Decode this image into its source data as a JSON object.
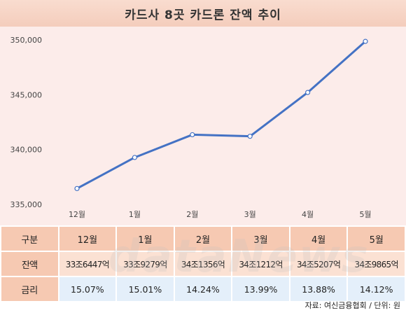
{
  "title": "카드사 8곳 카드론 잔액 추이",
  "chart_data": {
    "type": "line",
    "title": "카드사 8곳 카드론 잔액 추이",
    "categories": [
      "12월",
      "1월",
      "2월",
      "3월",
      "4월",
      "5월"
    ],
    "series": [
      {
        "values": [
          336447,
          339279,
          341356,
          341212,
          345207,
          349865
        ],
        "color": "#4472c4"
      }
    ],
    "y_ticks": [
      "335,000",
      "340,000",
      "345,000",
      "350,000"
    ],
    "ylim": [
      335000,
      350000
    ],
    "grid": false,
    "legend": "none"
  },
  "table": {
    "header": [
      "구분",
      "12월",
      "1월",
      "2월",
      "3월",
      "4월",
      "5월"
    ],
    "balance": {
      "label": "잔액",
      "values": [
        "33조6447억",
        "33조9279억",
        "34조1356억",
        "34조1212억",
        "34조5207억",
        "34조9865억"
      ]
    },
    "rate": {
      "label": "금리",
      "values": [
        "15.07%",
        "15.01%",
        "14.24%",
        "13.99%",
        "13.88%",
        "14.12%"
      ]
    }
  },
  "watermark": "dataNews",
  "source": "자료: 여신금융협회 / 단위: 원",
  "colors": {
    "line": "#4472c4",
    "plot_bg": "#fcecea",
    "title_bg": "#f6cfbf"
  }
}
